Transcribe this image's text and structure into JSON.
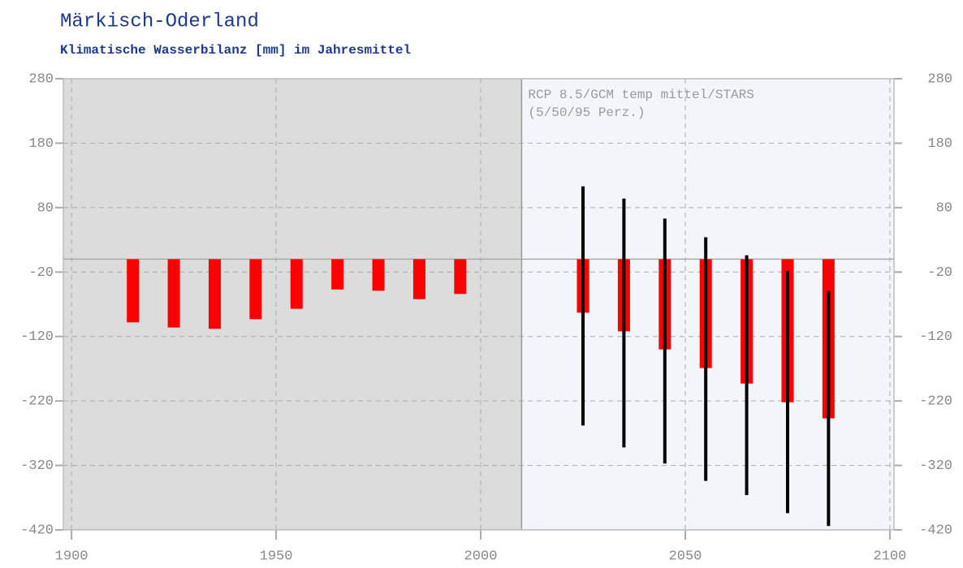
{
  "chart_data": {
    "type": "bar",
    "title": "Märkisch-Oderland",
    "subtitle": "Klimatische Wasserbilanz [mm] im Jahresmittel",
    "annotation": [
      "RCP 8.5/GCM temp mittel/STARS",
      "(5/50/95 Perz.)"
    ],
    "xlim": [
      1898,
      2101
    ],
    "xticks": [
      1900,
      1950,
      2000,
      2050,
      2100
    ],
    "ylim": [
      -420,
      280
    ],
    "yticks": [
      280,
      180,
      80,
      -20,
      -120,
      -220,
      -320,
      -420
    ],
    "grid": true,
    "projection_start": 2010,
    "series": [
      {
        "color": "#ff0000",
        "x": [
          1915,
          1925,
          1935,
          1945,
          1955,
          1965,
          1975,
          1985,
          1995
        ],
        "values": [
          -98,
          -106,
          -108,
          -93,
          -77,
          -47,
          -49,
          -62,
          -54
        ]
      },
      {
        "color": "#ff0000",
        "range_color": "#000000",
        "x": [
          2025,
          2035,
          2045,
          2055,
          2065,
          2075,
          2085
        ],
        "values": [
          -83,
          -112,
          -140,
          -169,
          -193,
          -222,
          -247
        ],
        "low": [
          -258,
          -292,
          -317,
          -344,
          -366,
          -394,
          -414
        ],
        "high": [
          113,
          94,
          63,
          34,
          6,
          -18,
          -49
        ]
      }
    ]
  }
}
